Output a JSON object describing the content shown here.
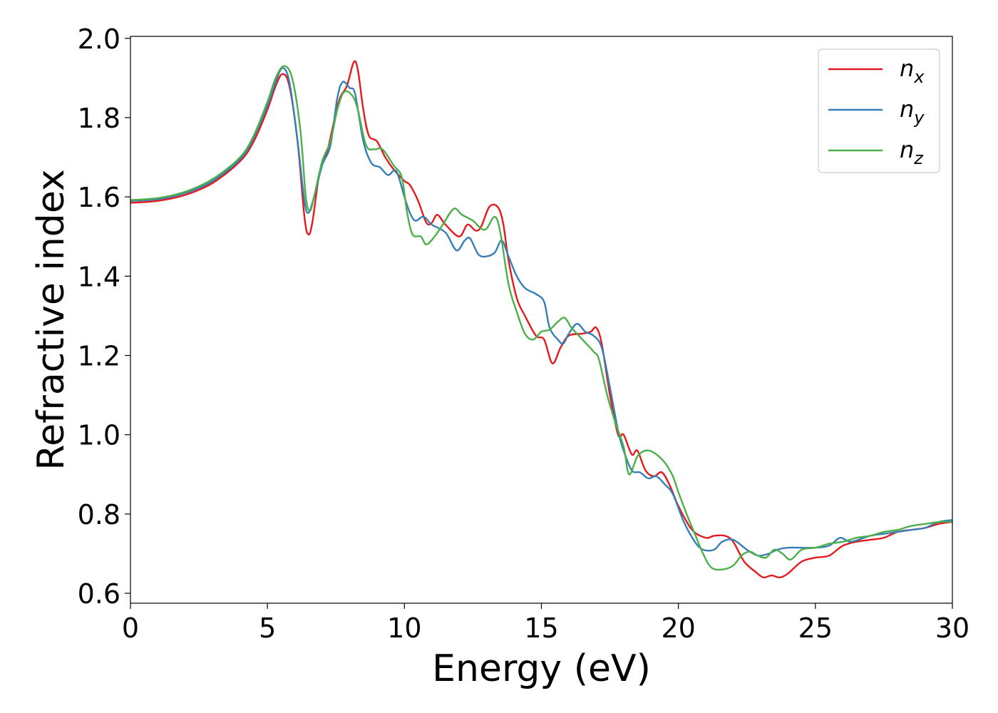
{
  "chart_data": {
    "type": "line",
    "xlabel": "Energy (eV)",
    "ylabel": "Refractive index",
    "xlim": [
      0,
      30
    ],
    "ylim": [
      0.575,
      2.005
    ],
    "xticks": [
      0,
      5,
      10,
      15,
      20,
      25,
      30
    ],
    "xtick_labels": [
      "0",
      "5",
      "10",
      "15",
      "20",
      "25",
      "30"
    ],
    "yticks": [
      0.6,
      0.8,
      1.0,
      1.2,
      1.4,
      1.6,
      1.8,
      2.0
    ],
    "ytick_labels": [
      "0.6",
      "0.8",
      "1.0",
      "1.2",
      "1.4",
      "1.6",
      "1.8",
      "2.0"
    ],
    "grid": false,
    "legend_position": "top-right",
    "series": [
      {
        "name": "n_x",
        "label_base": "n",
        "label_sub": "x",
        "color": "#e41a1c",
        "points": [
          [
            0,
            1.585
          ],
          [
            1,
            1.59
          ],
          [
            2,
            1.605
          ],
          [
            3,
            1.635
          ],
          [
            4,
            1.69
          ],
          [
            4.5,
            1.74
          ],
          [
            5,
            1.82
          ],
          [
            5.3,
            1.88
          ],
          [
            5.55,
            1.91
          ],
          [
            5.8,
            1.88
          ],
          [
            6.1,
            1.74
          ],
          [
            6.35,
            1.55
          ],
          [
            6.5,
            1.505
          ],
          [
            6.65,
            1.54
          ],
          [
            6.9,
            1.66
          ],
          [
            7.2,
            1.72
          ],
          [
            7.6,
            1.84
          ],
          [
            7.9,
            1.88
          ],
          [
            8.15,
            1.94
          ],
          [
            8.3,
            1.92
          ],
          [
            8.5,
            1.82
          ],
          [
            8.7,
            1.755
          ],
          [
            9,
            1.74
          ],
          [
            9.3,
            1.7
          ],
          [
            9.6,
            1.67
          ],
          [
            10,
            1.64
          ],
          [
            10.2,
            1.63
          ],
          [
            10.5,
            1.59
          ],
          [
            10.8,
            1.535
          ],
          [
            11,
            1.535
          ],
          [
            11.2,
            1.555
          ],
          [
            11.5,
            1.53
          ],
          [
            12,
            1.5
          ],
          [
            12.3,
            1.53
          ],
          [
            12.6,
            1.515
          ],
          [
            12.8,
            1.525
          ],
          [
            13.1,
            1.575
          ],
          [
            13.4,
            1.575
          ],
          [
            13.6,
            1.535
          ],
          [
            13.8,
            1.44
          ],
          [
            14.1,
            1.345
          ],
          [
            14.4,
            1.3
          ],
          [
            14.8,
            1.25
          ],
          [
            15.1,
            1.24
          ],
          [
            15.4,
            1.18
          ],
          [
            15.7,
            1.22
          ],
          [
            16,
            1.25
          ],
          [
            16.5,
            1.255
          ],
          [
            16.8,
            1.26
          ],
          [
            17,
            1.27
          ],
          [
            17.2,
            1.23
          ],
          [
            17.5,
            1.1
          ],
          [
            17.8,
            1.0
          ],
          [
            18,
            1.0
          ],
          [
            18.3,
            0.95
          ],
          [
            18.5,
            0.96
          ],
          [
            18.8,
            0.91
          ],
          [
            19.1,
            0.895
          ],
          [
            19.4,
            0.905
          ],
          [
            19.7,
            0.87
          ],
          [
            20,
            0.82
          ],
          [
            20.5,
            0.76
          ],
          [
            21,
            0.74
          ],
          [
            21.3,
            0.745
          ],
          [
            21.7,
            0.745
          ],
          [
            22,
            0.73
          ],
          [
            22.4,
            0.68
          ],
          [
            22.8,
            0.655
          ],
          [
            23.1,
            0.64
          ],
          [
            23.4,
            0.645
          ],
          [
            23.7,
            0.64
          ],
          [
            24,
            0.65
          ],
          [
            24.5,
            0.68
          ],
          [
            25,
            0.69
          ],
          [
            25.5,
            0.695
          ],
          [
            26,
            0.72
          ],
          [
            26.5,
            0.73
          ],
          [
            27,
            0.735
          ],
          [
            27.5,
            0.74
          ],
          [
            28,
            0.755
          ],
          [
            28.5,
            0.76
          ],
          [
            29,
            0.765
          ],
          [
            29.5,
            0.775
          ],
          [
            30,
            0.78
          ]
        ]
      },
      {
        "name": "n_y",
        "label_base": "n",
        "label_sub": "y",
        "color": "#377eb8",
        "points": [
          [
            0,
            1.59
          ],
          [
            1,
            1.594
          ],
          [
            2,
            1.61
          ],
          [
            3,
            1.64
          ],
          [
            4,
            1.695
          ],
          [
            4.5,
            1.75
          ],
          [
            5,
            1.83
          ],
          [
            5.3,
            1.89
          ],
          [
            5.55,
            1.925
          ],
          [
            5.8,
            1.89
          ],
          [
            6.1,
            1.74
          ],
          [
            6.35,
            1.59
          ],
          [
            6.5,
            1.56
          ],
          [
            6.7,
            1.6
          ],
          [
            7,
            1.68
          ],
          [
            7.3,
            1.73
          ],
          [
            7.55,
            1.85
          ],
          [
            7.75,
            1.89
          ],
          [
            8,
            1.875
          ],
          [
            8.2,
            1.86
          ],
          [
            8.5,
            1.74
          ],
          [
            8.8,
            1.685
          ],
          [
            9.1,
            1.675
          ],
          [
            9.4,
            1.655
          ],
          [
            9.7,
            1.665
          ],
          [
            10,
            1.6
          ],
          [
            10.2,
            1.56
          ],
          [
            10.4,
            1.54
          ],
          [
            10.7,
            1.55
          ],
          [
            11,
            1.53
          ],
          [
            11.5,
            1.51
          ],
          [
            11.9,
            1.465
          ],
          [
            12.2,
            1.49
          ],
          [
            12.4,
            1.495
          ],
          [
            12.7,
            1.455
          ],
          [
            13,
            1.45
          ],
          [
            13.3,
            1.46
          ],
          [
            13.55,
            1.49
          ],
          [
            13.8,
            1.45
          ],
          [
            14.1,
            1.4
          ],
          [
            14.4,
            1.37
          ],
          [
            14.8,
            1.355
          ],
          [
            15.1,
            1.335
          ],
          [
            15.3,
            1.27
          ],
          [
            15.6,
            1.24
          ],
          [
            15.8,
            1.23
          ],
          [
            16,
            1.255
          ],
          [
            16.3,
            1.28
          ],
          [
            16.6,
            1.26
          ],
          [
            16.9,
            1.25
          ],
          [
            17.2,
            1.22
          ],
          [
            17.5,
            1.12
          ],
          [
            17.8,
            1.01
          ],
          [
            18,
            0.96
          ],
          [
            18.3,
            0.91
          ],
          [
            18.6,
            0.905
          ],
          [
            18.9,
            0.89
          ],
          [
            19.2,
            0.895
          ],
          [
            19.5,
            0.875
          ],
          [
            19.8,
            0.85
          ],
          [
            20.2,
            0.78
          ],
          [
            20.6,
            0.73
          ],
          [
            20.9,
            0.71
          ],
          [
            21.3,
            0.71
          ],
          [
            21.6,
            0.73
          ],
          [
            22,
            0.735
          ],
          [
            22.5,
            0.71
          ],
          [
            22.9,
            0.695
          ],
          [
            23.3,
            0.7
          ],
          [
            23.6,
            0.71
          ],
          [
            24,
            0.715
          ],
          [
            24.5,
            0.715
          ],
          [
            25,
            0.715
          ],
          [
            25.5,
            0.72
          ],
          [
            25.9,
            0.74
          ],
          [
            26.3,
            0.73
          ],
          [
            27,
            0.745
          ],
          [
            27.5,
            0.75
          ],
          [
            28,
            0.755
          ],
          [
            28.5,
            0.76
          ],
          [
            29,
            0.765
          ],
          [
            29.5,
            0.78
          ],
          [
            30,
            0.785
          ]
        ]
      },
      {
        "name": "n_z",
        "label_base": "n",
        "label_sub": "z",
        "color": "#4daf4a",
        "points": [
          [
            0,
            1.592
          ],
          [
            1,
            1.597
          ],
          [
            2,
            1.613
          ],
          [
            3,
            1.645
          ],
          [
            4,
            1.7
          ],
          [
            4.5,
            1.755
          ],
          [
            5,
            1.84
          ],
          [
            5.3,
            1.9
          ],
          [
            5.6,
            1.93
          ],
          [
            5.9,
            1.9
          ],
          [
            6.2,
            1.77
          ],
          [
            6.4,
            1.6
          ],
          [
            6.55,
            1.565
          ],
          [
            6.7,
            1.6
          ],
          [
            7,
            1.69
          ],
          [
            7.3,
            1.74
          ],
          [
            7.55,
            1.82
          ],
          [
            7.8,
            1.865
          ],
          [
            8.1,
            1.855
          ],
          [
            8.3,
            1.82
          ],
          [
            8.6,
            1.73
          ],
          [
            8.9,
            1.72
          ],
          [
            9.2,
            1.72
          ],
          [
            9.6,
            1.68
          ],
          [
            9.9,
            1.65
          ],
          [
            10.1,
            1.56
          ],
          [
            10.3,
            1.505
          ],
          [
            10.6,
            1.5
          ],
          [
            10.8,
            1.48
          ],
          [
            11.1,
            1.5
          ],
          [
            11.4,
            1.53
          ],
          [
            11.8,
            1.57
          ],
          [
            12.1,
            1.555
          ],
          [
            12.5,
            1.54
          ],
          [
            12.8,
            1.52
          ],
          [
            13,
            1.52
          ],
          [
            13.3,
            1.55
          ],
          [
            13.5,
            1.51
          ],
          [
            13.8,
            1.38
          ],
          [
            14.1,
            1.31
          ],
          [
            14.4,
            1.255
          ],
          [
            14.7,
            1.24
          ],
          [
            15,
            1.26
          ],
          [
            15.3,
            1.265
          ],
          [
            15.6,
            1.285
          ],
          [
            15.85,
            1.295
          ],
          [
            16.1,
            1.27
          ],
          [
            16.5,
            1.24
          ],
          [
            16.9,
            1.21
          ],
          [
            17.1,
            1.19
          ],
          [
            17.4,
            1.1
          ],
          [
            17.7,
            1.03
          ],
          [
            18,
            0.97
          ],
          [
            18.2,
            0.9
          ],
          [
            18.5,
            0.945
          ],
          [
            18.8,
            0.96
          ],
          [
            19.1,
            0.955
          ],
          [
            19.5,
            0.93
          ],
          [
            19.8,
            0.895
          ],
          [
            20,
            0.855
          ],
          [
            20.3,
            0.8
          ],
          [
            20.6,
            0.75
          ],
          [
            20.9,
            0.7
          ],
          [
            21.2,
            0.665
          ],
          [
            21.6,
            0.66
          ],
          [
            22,
            0.67
          ],
          [
            22.3,
            0.695
          ],
          [
            22.6,
            0.705
          ],
          [
            22.9,
            0.695
          ],
          [
            23.2,
            0.69
          ],
          [
            23.5,
            0.71
          ],
          [
            23.8,
            0.7
          ],
          [
            24.1,
            0.685
          ],
          [
            24.5,
            0.71
          ],
          [
            25,
            0.715
          ],
          [
            25.5,
            0.725
          ],
          [
            26,
            0.73
          ],
          [
            26.5,
            0.74
          ],
          [
            27,
            0.745
          ],
          [
            27.5,
            0.755
          ],
          [
            28,
            0.76
          ],
          [
            28.5,
            0.77
          ],
          [
            29,
            0.775
          ],
          [
            29.5,
            0.78
          ],
          [
            30,
            0.78
          ]
        ]
      }
    ]
  }
}
